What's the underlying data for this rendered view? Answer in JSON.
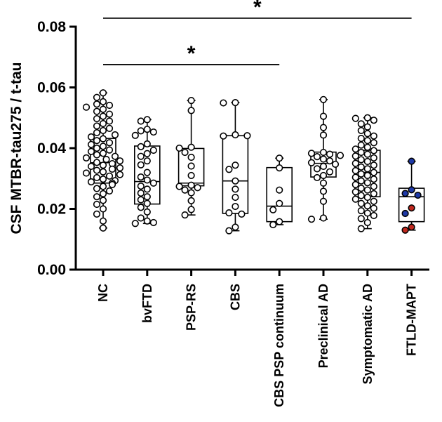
{
  "chart_data": {
    "type": "box",
    "ylabel": "CSF MTBR-tau275 / t-tau",
    "ylim": [
      0.0,
      0.08
    ],
    "yticks": [
      "0.00",
      "0.02",
      "0.04",
      "0.06",
      "0.08"
    ],
    "ytick_values": [
      0.0,
      0.02,
      0.04,
      0.06,
      0.08
    ],
    "grid": false,
    "categories": [
      "NC",
      "bvFTD",
      "PSP-RS",
      "CBS",
      "CBS PSP continuum",
      "Preclinical AD",
      "Symptomatic AD",
      "FTLD-MAPT"
    ],
    "groups": [
      {
        "name": "NC",
        "min": 0.0137,
        "q1": 0.0285,
        "median": 0.0352,
        "q3": 0.0432,
        "max": 0.0582,
        "points": [
          0.0582,
          0.0567,
          0.0553,
          0.0545,
          0.0541,
          0.0535,
          0.0528,
          0.0521,
          0.0512,
          0.0505,
          0.0497,
          0.0489,
          0.0481,
          0.0473,
          0.0465,
          0.0458,
          0.0451,
          0.0444,
          0.0437,
          0.0431,
          0.0425,
          0.0418,
          0.0412,
          0.0406,
          0.04,
          0.0394,
          0.0389,
          0.0383,
          0.0378,
          0.0373,
          0.0368,
          0.0363,
          0.0358,
          0.0353,
          0.0349,
          0.0344,
          0.034,
          0.0335,
          0.0331,
          0.0327,
          0.0322,
          0.0318,
          0.0313,
          0.0308,
          0.0303,
          0.0298,
          0.0293,
          0.0289,
          0.0285,
          0.028,
          0.0274,
          0.0267,
          0.0259,
          0.025,
          0.024,
          0.0228,
          0.0215,
          0.02,
          0.0183,
          0.016,
          0.0137
        ]
      },
      {
        "name": "bvFTD",
        "min": 0.0152,
        "q1": 0.0216,
        "median": 0.029,
        "q3": 0.0407,
        "max": 0.0494,
        "points": [
          0.0494,
          0.0489,
          0.0462,
          0.0457,
          0.0453,
          0.0442,
          0.0414,
          0.0405,
          0.0393,
          0.0382,
          0.0373,
          0.0358,
          0.0345,
          0.032,
          0.0305,
          0.0295,
          0.0285,
          0.0275,
          0.0265,
          0.0252,
          0.024,
          0.023,
          0.0218,
          0.0205,
          0.019,
          0.017,
          0.016,
          0.0155,
          0.0152
        ]
      },
      {
        "name": "PSP-RS",
        "min": 0.018,
        "q1": 0.0276,
        "median": 0.0285,
        "q3": 0.0399,
        "max": 0.0557,
        "points": [
          0.0557,
          0.0524,
          0.0403,
          0.04,
          0.0386,
          0.037,
          0.0341,
          0.031,
          0.0278,
          0.0274,
          0.027,
          0.0262,
          0.0253,
          0.0227,
          0.0198,
          0.018
        ]
      },
      {
        "name": "CBS",
        "min": 0.0128,
        "q1": 0.0185,
        "median": 0.0292,
        "q3": 0.0441,
        "max": 0.055,
        "points": [
          0.055,
          0.0549,
          0.0444,
          0.044,
          0.0441,
          0.0344,
          0.033,
          0.0292,
          0.0265,
          0.0238,
          0.0208,
          0.0187,
          0.0183,
          0.014,
          0.0128
        ]
      },
      {
        "name": "CBS PSP continuum",
        "min": 0.0148,
        "q1": 0.0158,
        "median": 0.0209,
        "q3": 0.0336,
        "max": 0.0367,
        "points": [
          0.0367,
          0.0335,
          0.0262,
          0.0218,
          0.0197,
          0.0158,
          0.0148
        ]
      },
      {
        "name": "Preclinical AD",
        "min": 0.0166,
        "q1": 0.0305,
        "median": 0.035,
        "q3": 0.0387,
        "max": 0.056,
        "points": [
          0.056,
          0.0505,
          0.0468,
          0.0443,
          0.0386,
          0.0383,
          0.038,
          0.0376,
          0.0372,
          0.0364,
          0.0358,
          0.0352,
          0.0347,
          0.034,
          0.0332,
          0.0322,
          0.031,
          0.0303,
          0.0285,
          0.0258,
          0.0225,
          0.017,
          0.0166
        ]
      },
      {
        "name": "Symptomatic AD",
        "min": 0.0135,
        "q1": 0.024,
        "median": 0.032,
        "q3": 0.0393,
        "max": 0.05,
        "points": [
          0.05,
          0.0498,
          0.0492,
          0.048,
          0.047,
          0.0458,
          0.0448,
          0.044,
          0.0432,
          0.0425,
          0.0418,
          0.041,
          0.0403,
          0.0397,
          0.0392,
          0.0386,
          0.038,
          0.0374,
          0.0368,
          0.0362,
          0.0356,
          0.035,
          0.0344,
          0.0338,
          0.0332,
          0.0326,
          0.032,
          0.0315,
          0.031,
          0.0304,
          0.0298,
          0.0292,
          0.0286,
          0.028,
          0.0274,
          0.0268,
          0.0262,
          0.0256,
          0.025,
          0.0244,
          0.0238,
          0.0232,
          0.0225,
          0.0218,
          0.021,
          0.0202,
          0.0194,
          0.0186,
          0.0178,
          0.0168,
          0.0155,
          0.0135
        ]
      },
      {
        "name": "FTLD-MAPT",
        "min": 0.013,
        "q1": 0.0158,
        "median": 0.024,
        "q3": 0.0268,
        "max": 0.0357,
        "points": [
          0.0357,
          0.0263,
          0.0251,
          0.0245,
          0.0203,
          0.0185,
          0.014,
          0.013
        ],
        "point_colors": [
          "#1f3aa8",
          "#1f3aa8",
          "#1f3aa8",
          "#1f3aa8",
          "#c0281e",
          "#1f3aa8",
          "#c0281e",
          "#c0281e"
        ]
      }
    ],
    "significance": [
      {
        "from": "NC",
        "to": "CBS PSP continuum",
        "label": "*",
        "y": 0.0675
      },
      {
        "from": "NC",
        "to": "FTLD-MAPT",
        "label": "*",
        "y": 0.0828
      }
    ],
    "colors": {
      "box": "#000000",
      "point_fill_default": "#ffffff",
      "blue": "#1f3aa8",
      "red": "#c0281e"
    }
  }
}
